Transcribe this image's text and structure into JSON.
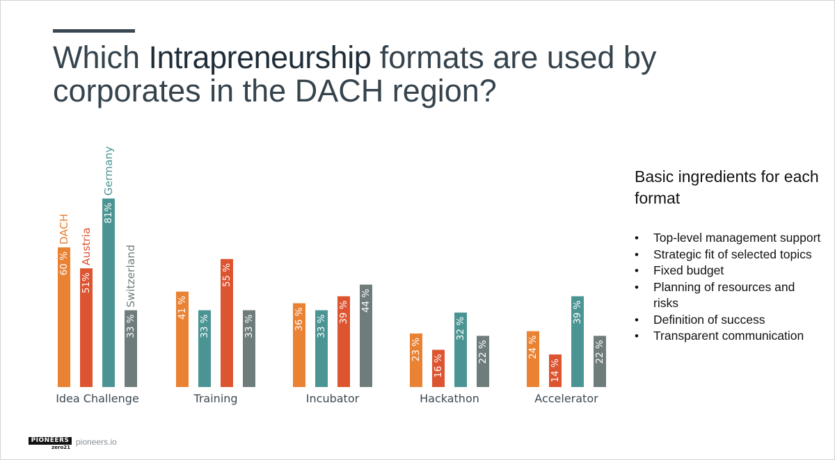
{
  "title": {
    "prefix": "Which ",
    "emphasis": "Intrapreneurship",
    "suffix": " formats are used by corporates in the DACH region?"
  },
  "sidebar": {
    "heading": "Basic ingredients for each format",
    "items": [
      "Top-level management support",
      "Strategic fit of selected topics",
      "Fixed budget",
      "Planning of resources and risks",
      "Definition of success",
      "Transparent communication"
    ]
  },
  "footer": {
    "logo_main": "PIONEERS",
    "logo_sub": "zero21",
    "url": "pioneers.io"
  },
  "colors": {
    "DACH": "#ea8234",
    "Austria": "#dd5431",
    "Germany": "#4b9494",
    "Switzerland": "#6f7c7c"
  },
  "chart_data": {
    "type": "bar",
    "categories": [
      "Idea Challenge",
      "Training",
      "Incubator",
      "Hackathon",
      "Accelerator"
    ],
    "series": [
      {
        "name": "DACH",
        "values": [
          60,
          41,
          36,
          23,
          24
        ],
        "labels": [
          "60 %",
          "41 %",
          "36 %",
          "23 %",
          "24 %"
        ]
      },
      {
        "name": "Austria",
        "values": [
          51,
          55,
          39,
          16,
          14
        ],
        "labels": [
          "51%",
          "55 %",
          "39 %",
          "16 %",
          "14 %"
        ]
      },
      {
        "name": "Germany",
        "values": [
          81,
          33,
          33,
          32,
          39
        ],
        "labels": [
          "81%",
          "33 %",
          "33 %",
          "32 %",
          "39 %"
        ]
      },
      {
        "name": "Switzerland",
        "values": [
          33,
          33,
          44,
          22,
          22
        ],
        "labels": [
          "33 %",
          "33 %",
          "44 %",
          "22 %",
          "22 %"
        ]
      }
    ],
    "bar_series_order": [
      [
        "DACH",
        "Austria",
        "Germany",
        "Switzerland"
      ],
      [
        "DACH",
        "Germany",
        "Austria",
        "Switzerland"
      ],
      [
        "DACH",
        "Germany",
        "Austria",
        "Switzerland"
      ],
      [
        "DACH",
        "Austria",
        "Germany",
        "Switzerland"
      ],
      [
        "DACH",
        "Austria",
        "Germany",
        "Switzerland"
      ]
    ],
    "legend": "series names printed vertically above the first group",
    "ylim": [
      0,
      100
    ],
    "grid": false
  }
}
